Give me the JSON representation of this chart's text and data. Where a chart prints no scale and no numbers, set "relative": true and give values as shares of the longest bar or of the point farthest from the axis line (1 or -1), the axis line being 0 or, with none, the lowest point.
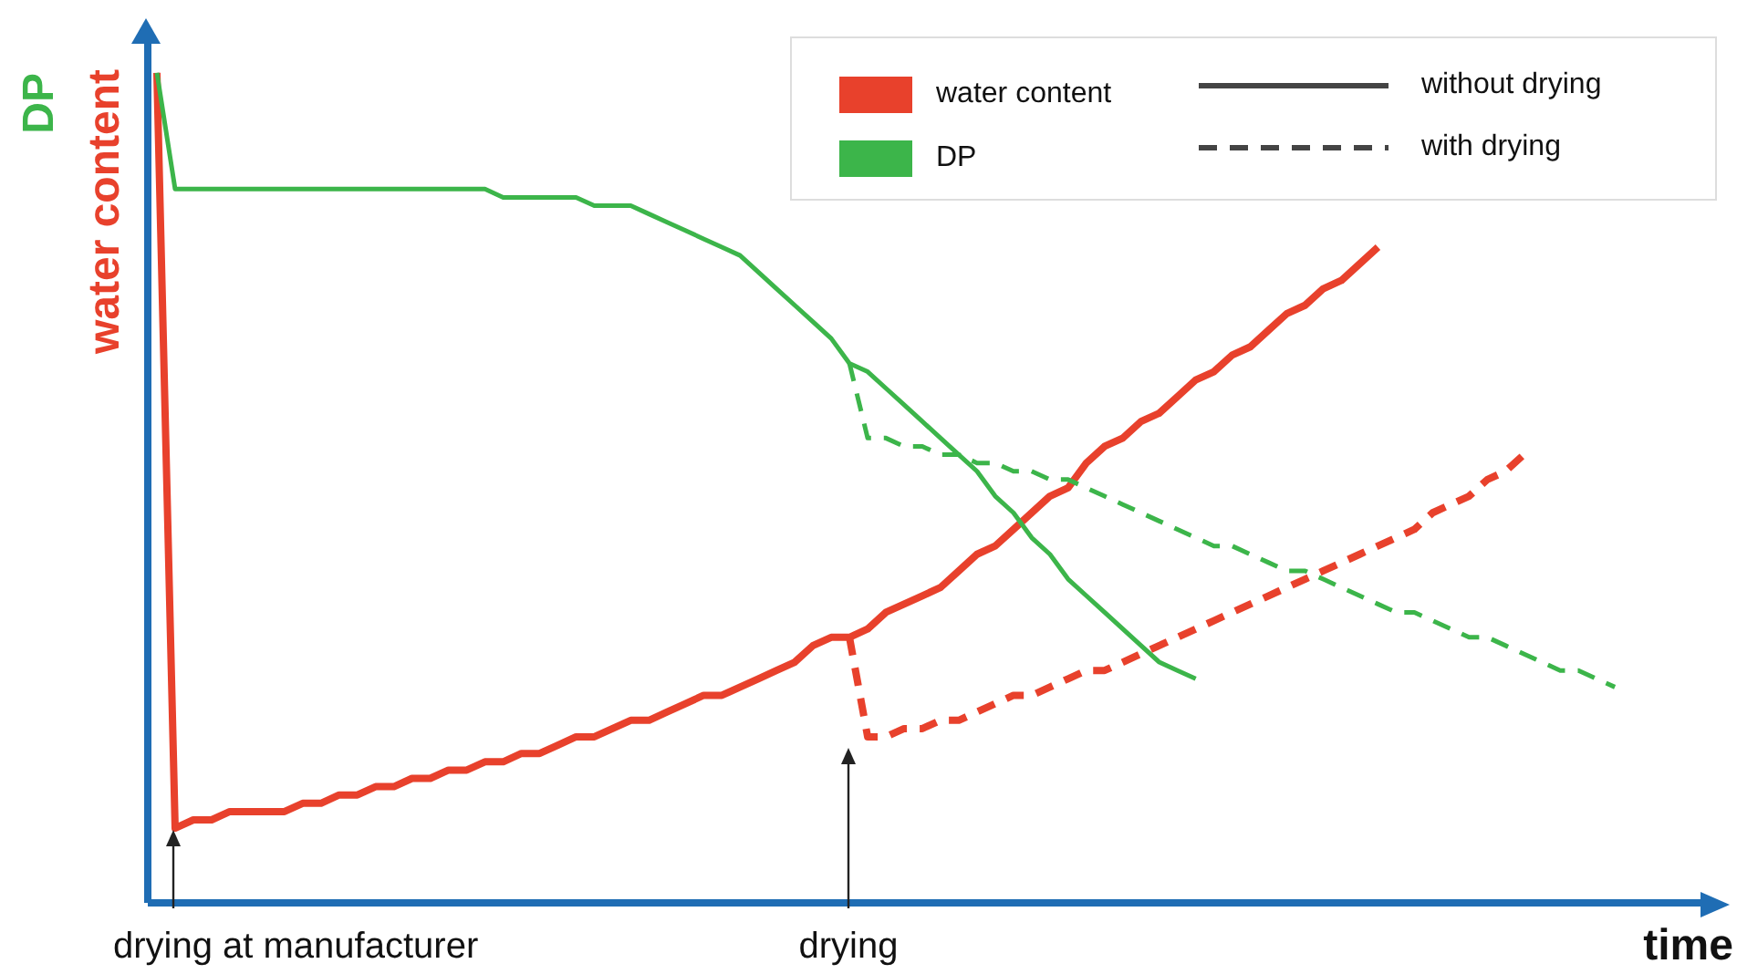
{
  "chart_data": {
    "type": "line",
    "relative": true,
    "xlabel": "time",
    "ylabel": "water content",
    "y2label": "DP",
    "legend": "top right",
    "categories": [
      null,
      null,
      null,
      null,
      null,
      null,
      null,
      null,
      null,
      null,
      null,
      null,
      null,
      null,
      null,
      null,
      null,
      null,
      null,
      null,
      null,
      null,
      null,
      null,
      null,
      null,
      null,
      null,
      null,
      null,
      null,
      null,
      null,
      null,
      null,
      null,
      null,
      null,
      null,
      null,
      null,
      null,
      null,
      null,
      null,
      null,
      null,
      null,
      null,
      null,
      null,
      null,
      null,
      null,
      null,
      null,
      null,
      null,
      null,
      null,
      null,
      null,
      null,
      null,
      null,
      null,
      null,
      null,
      null,
      null,
      null,
      null,
      null,
      null,
      null,
      null,
      null,
      null,
      null,
      null,
      null,
      null,
      null,
      null,
      null,
      null
    ],
    "annotations": [
      "drying at manufacturer",
      "drying",
      "without drying",
      "with drying"
    ],
    "series": [
      {
        "name": "water content",
        "color": "#e8412c",
        "line_style": "solid",
        "values": [
          1.0,
          0.09,
          0.1,
          0.1,
          0.11,
          0.11,
          0.11,
          0.11,
          0.12,
          0.12,
          0.13,
          0.13,
          0.14,
          0.14,
          0.15,
          0.15,
          0.16,
          0.16,
          0.17,
          0.17,
          0.18,
          0.18,
          0.19,
          0.2,
          0.2,
          0.21,
          0.22,
          0.22,
          0.23,
          0.24,
          0.25,
          0.25,
          0.26,
          0.27,
          0.28,
          0.29,
          0.31,
          0.32,
          0.32,
          0.33,
          0.35,
          0.36,
          0.37,
          0.38,
          0.4,
          0.42,
          0.43,
          0.45,
          0.47,
          0.49,
          0.5,
          0.53,
          0.55,
          0.56,
          0.58,
          0.59,
          0.61,
          0.63,
          0.64,
          0.66,
          0.67,
          0.69,
          0.71,
          0.72,
          0.74,
          0.75,
          0.77,
          0.79,
          null,
          null,
          null,
          null,
          null,
          null,
          null,
          null,
          null,
          null,
          null,
          null,
          null,
          null,
          null,
          null,
          null,
          null
        ]
      },
      {
        "name": "DP",
        "color": "#3cb54a",
        "line_style": "solid",
        "values": [
          1.0,
          0.86,
          0.86,
          0.86,
          0.86,
          0.86,
          0.86,
          0.86,
          0.86,
          0.86,
          0.86,
          0.86,
          0.86,
          0.86,
          0.86,
          0.86,
          0.86,
          0.86,
          0.86,
          0.85,
          0.85,
          0.85,
          0.85,
          0.85,
          0.84,
          0.84,
          0.84,
          0.83,
          0.82,
          0.81,
          0.8,
          0.79,
          0.78,
          0.76,
          0.74,
          0.72,
          0.7,
          0.68,
          0.65,
          0.64,
          0.62,
          0.6,
          0.58,
          0.56,
          0.54,
          0.52,
          0.49,
          0.47,
          0.44,
          0.42,
          0.39,
          0.37,
          0.35,
          0.33,
          0.31,
          0.29,
          0.28,
          0.27,
          null,
          null,
          null,
          null,
          null,
          null,
          null,
          null,
          null,
          null,
          null,
          null,
          null,
          null,
          null,
          null,
          null,
          null,
          null,
          null,
          null,
          null,
          null,
          null,
          null,
          null,
          null,
          null
        ]
      },
      {
        "color": "#e8412c",
        "line_style": "dashed",
        "values": [
          null,
          null,
          null,
          null,
          null,
          null,
          null,
          null,
          null,
          null,
          null,
          null,
          null,
          null,
          null,
          null,
          null,
          null,
          null,
          null,
          null,
          null,
          null,
          null,
          null,
          null,
          null,
          null,
          null,
          null,
          null,
          null,
          null,
          null,
          null,
          null,
          null,
          null,
          0.32,
          0.2,
          0.2,
          0.21,
          0.21,
          0.22,
          0.22,
          0.23,
          0.24,
          0.25,
          0.25,
          0.26,
          0.27,
          0.28,
          0.28,
          0.29,
          0.3,
          0.31,
          0.32,
          0.33,
          0.34,
          0.35,
          0.36,
          0.37,
          0.38,
          0.39,
          0.4,
          0.41,
          0.42,
          0.43,
          0.44,
          0.45,
          0.47,
          0.48,
          0.49,
          0.51,
          0.52,
          0.54,
          null,
          null,
          null,
          null,
          null,
          null,
          null,
          null,
          null,
          null
        ]
      },
      {
        "color": "#3cb54a",
        "line_style": "dashed",
        "values": [
          null,
          null,
          null,
          null,
          null,
          null,
          null,
          null,
          null,
          null,
          null,
          null,
          null,
          null,
          null,
          null,
          null,
          null,
          null,
          null,
          null,
          null,
          null,
          null,
          null,
          null,
          null,
          null,
          null,
          null,
          null,
          null,
          null,
          null,
          null,
          null,
          null,
          null,
          0.65,
          0.56,
          0.56,
          0.55,
          0.55,
          0.54,
          0.54,
          0.53,
          0.53,
          0.52,
          0.52,
          0.51,
          0.51,
          0.5,
          0.49,
          0.48,
          0.47,
          0.46,
          0.45,
          0.44,
          0.43,
          0.43,
          0.42,
          0.41,
          0.4,
          0.4,
          0.39,
          0.38,
          0.37,
          0.36,
          0.35,
          0.35,
          0.34,
          0.33,
          0.32,
          0.32,
          0.31,
          0.3,
          0.29,
          0.28,
          0.28,
          0.27,
          0.26,
          null,
          null,
          null,
          null,
          null
        ]
      }
    ]
  }
}
